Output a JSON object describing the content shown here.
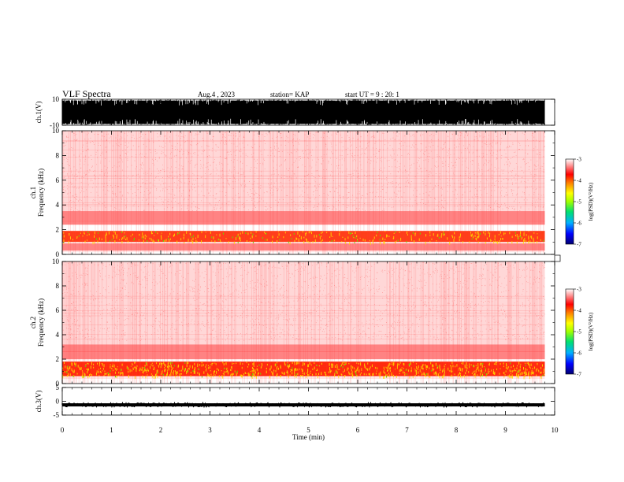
{
  "header": {
    "title": "VLF Spectra",
    "date": "Aug.4 , 2023",
    "station": "station= KAP",
    "start_time": "start UT = 9 : 20: 1"
  },
  "chart_data": [
    {
      "type": "line",
      "name": "ch1-waveform",
      "ylabel": "ch.1(V)",
      "ylim": [
        -10,
        10
      ],
      "yticks": [
        "10",
        "-10"
      ],
      "xlim": [
        0,
        10
      ],
      "signal": "dense black waveform spanning nearly full range, saturating near ±10 V",
      "data_end_min": 9.8
    },
    {
      "type": "heatmap",
      "name": "ch1-spectrogram",
      "ylabel": "ch.1\nFrequency (kHz)",
      "ylim": [
        0,
        10
      ],
      "yticks": [
        "0",
        "2",
        "4",
        "6",
        "8",
        "10"
      ],
      "xlim": [
        0,
        10
      ],
      "data_end_min": 9.8,
      "bands": [
        {
          "f_low": 0.3,
          "f_high": 0.9,
          "intensity": 0.45
        },
        {
          "f_low": 1.0,
          "f_high": 1.9,
          "intensity": 0.85
        },
        {
          "f_low": 2.4,
          "f_high": 3.5,
          "intensity": 0.6
        },
        {
          "f_low": 3.5,
          "f_high": 10,
          "intensity": 0.12
        }
      ],
      "colorbar": {
        "label": "log(PSD)(V²/Hz)",
        "range": [
          -7,
          -3
        ],
        "ticks": [
          "-3",
          "-4",
          "-5",
          "-6",
          "-7"
        ],
        "colors": [
          "#000080",
          "#0000ff",
          "#00c0ff",
          "#00e060",
          "#80ff00",
          "#ffff00",
          "#ff8000",
          "#ff0000",
          "#ff8080",
          "#ffffff"
        ]
      }
    },
    {
      "type": "heatmap",
      "name": "ch2-spectrogram",
      "ylabel": "ch.2\nFrequency (kHz)",
      "ylim": [
        0,
        10
      ],
      "yticks": [
        "0",
        "2",
        "4",
        "6",
        "8",
        "10"
      ],
      "xlim": [
        0,
        10
      ],
      "data_end_min": 9.8,
      "bands": [
        {
          "f_low": 0.6,
          "f_high": 1.8,
          "intensity": 0.95
        },
        {
          "f_low": 2.0,
          "f_high": 3.2,
          "intensity": 0.6
        },
        {
          "f_low": 3.2,
          "f_high": 10,
          "intensity": 0.12
        }
      ],
      "colorbar": {
        "label": "log(PSD)(V²/Hz)",
        "range": [
          -7,
          -3
        ],
        "ticks": [
          "-3",
          "-4",
          "-5",
          "-6",
          "-7"
        ],
        "colors": [
          "#000080",
          "#0000ff",
          "#00c0ff",
          "#00e060",
          "#80ff00",
          "#ffff00",
          "#ff8000",
          "#ff0000",
          "#ff8080",
          "#ffffff"
        ]
      }
    },
    {
      "type": "line",
      "name": "ch3-waveform",
      "ylabel": "ch.3(V)",
      "ylim": [
        -5,
        5
      ],
      "yticks": [
        "5",
        "0",
        "-5"
      ],
      "xlim": [
        0,
        10
      ],
      "signal": "flat black trace near -1.3 V",
      "level": -1.3,
      "data_end_min": 9.8
    }
  ],
  "xaxis": {
    "label": "Time (min)",
    "ticks": [
      "0",
      "1",
      "2",
      "3",
      "4",
      "5",
      "6",
      "7",
      "8",
      "9",
      "10"
    ]
  }
}
